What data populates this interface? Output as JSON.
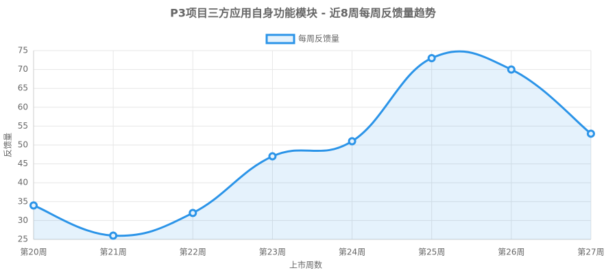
{
  "chart_data": {
    "type": "line",
    "title": "P3项目三方应用自身功能模块 - 近8周每周反馈量趋势",
    "x_label": "上市周数",
    "y_label": "反馈量",
    "categories": [
      "第20周",
      "第21周",
      "第22周",
      "第23周",
      "第24周",
      "第25周",
      "第26周",
      "第27周"
    ],
    "series": [
      {
        "name": "每周反馈量",
        "color": "#2b94e8",
        "values": [
          34,
          26,
          32,
          47,
          51,
          73,
          70,
          53
        ]
      }
    ],
    "ylim": [
      25,
      75
    ],
    "yticks": [
      25,
      30,
      35,
      40,
      45,
      50,
      55,
      60,
      65,
      70,
      75
    ],
    "grid": true,
    "fill": true,
    "legend": "top"
  }
}
